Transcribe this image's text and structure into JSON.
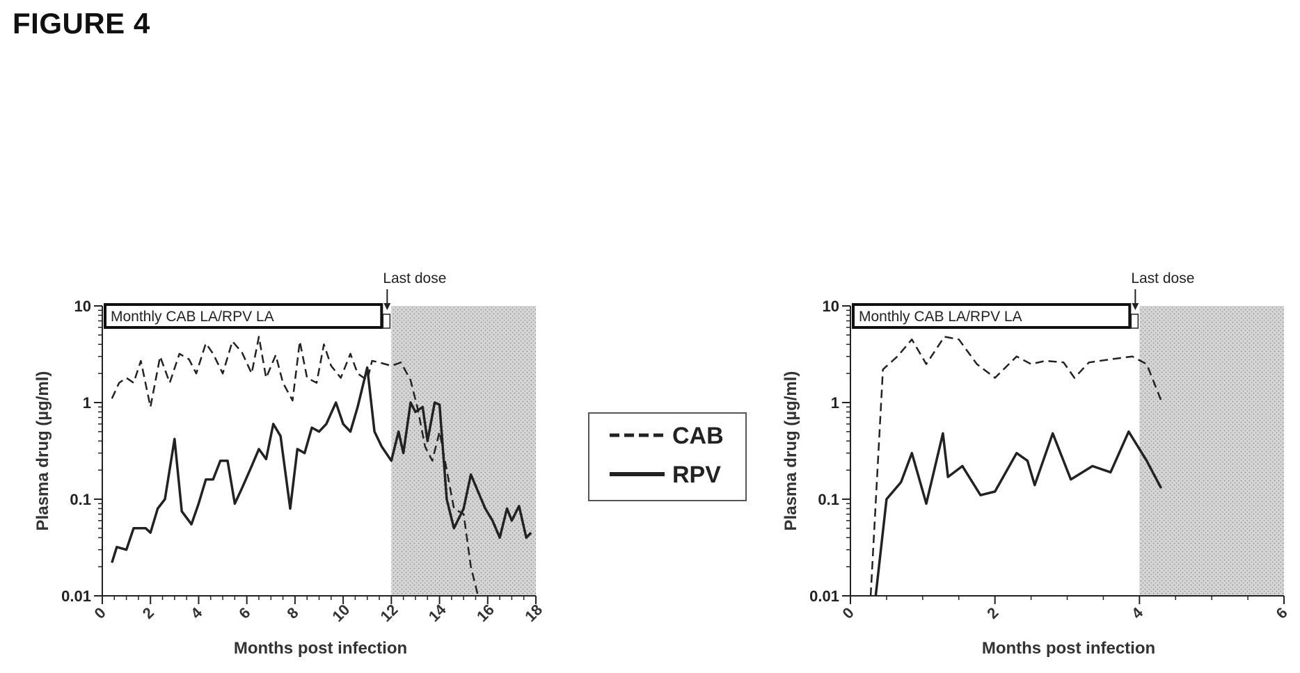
{
  "figure_title": "FIGURE 4",
  "colors": {
    "line": "#222222",
    "shade": "#c8c8c8",
    "frame": "#111111"
  },
  "legend": {
    "items": [
      {
        "label": "CAB",
        "style": "dashed"
      },
      {
        "label": "RPV",
        "style": "solid"
      }
    ]
  },
  "chart_data": [
    {
      "type": "line",
      "xlabel": "Months post infection",
      "ylabel": "Plasma drug (µg/ml)",
      "xlim": [
        0,
        18
      ],
      "ylim": [
        0.01,
        10
      ],
      "yscale": "log",
      "xticks": [
        0,
        2,
        4,
        6,
        8,
        10,
        12,
        14,
        16,
        18
      ],
      "xtick_labels": [
        "0",
        "2",
        "4",
        "6",
        "8",
        "10",
        "12",
        "14",
        "16",
        "18"
      ],
      "yticks": [
        0.01,
        0.1,
        1,
        10
      ],
      "ytick_labels": [
        "0.01",
        "0.1",
        "1",
        "10"
      ],
      "annotation": "Last dose",
      "last_dose_x": 12,
      "dosing_box_label": "Monthly CAB LA/RPV LA",
      "shaded_region": [
        12,
        18
      ],
      "series": [
        {
          "name": "CAB",
          "style": "dashed",
          "x": [
            0.4,
            0.7,
            1.0,
            1.3,
            1.6,
            2.0,
            2.4,
            2.8,
            3.2,
            3.6,
            3.9,
            4.3,
            4.6,
            5.0,
            5.4,
            5.8,
            6.2,
            6.5,
            6.8,
            7.2,
            7.5,
            7.9,
            8.2,
            8.5,
            8.9,
            9.2,
            9.5,
            9.9,
            10.3,
            10.6,
            11.0,
            11.2,
            11.5,
            12.0,
            12.4,
            12.8,
            13.1,
            13.4,
            13.7,
            14.0,
            14.3,
            14.6,
            15.0,
            15.3,
            15.6
          ],
          "y": [
            1.1,
            1.6,
            1.8,
            1.6,
            2.7,
            0.9,
            3.0,
            1.6,
            3.2,
            2.8,
            2.0,
            4.1,
            3.2,
            2.0,
            4.3,
            3.3,
            2.0,
            4.8,
            1.8,
            3.1,
            1.6,
            1.05,
            4.3,
            1.8,
            1.6,
            4.0,
            2.4,
            1.8,
            3.2,
            2.0,
            1.7,
            2.7,
            2.6,
            2.4,
            2.6,
            1.7,
            0.85,
            0.35,
            0.25,
            0.5,
            0.2,
            0.08,
            0.07,
            0.02,
            0.01
          ]
        },
        {
          "name": "RPV",
          "style": "solid",
          "x": [
            0.4,
            0.6,
            1.0,
            1.3,
            1.6,
            1.8,
            2.0,
            2.3,
            2.6,
            3.0,
            3.3,
            3.7,
            4.0,
            4.3,
            4.6,
            4.9,
            5.2,
            5.5,
            5.8,
            6.2,
            6.5,
            6.8,
            7.1,
            7.4,
            7.8,
            8.1,
            8.4,
            8.7,
            9.0,
            9.3,
            9.7,
            10.0,
            10.3,
            10.6,
            11.0,
            11.3,
            11.6,
            12.0,
            12.3,
            12.5,
            12.8,
            13.0,
            13.3,
            13.5,
            13.8,
            14.0,
            14.3,
            14.6,
            15.0,
            15.3,
            15.6,
            15.9,
            16.2,
            16.5,
            16.8,
            17.0,
            17.3,
            17.6,
            17.8
          ],
          "y": [
            0.022,
            0.032,
            0.03,
            0.05,
            0.05,
            0.05,
            0.045,
            0.08,
            0.1,
            0.42,
            0.075,
            0.055,
            0.09,
            0.16,
            0.16,
            0.25,
            0.25,
            0.09,
            0.13,
            0.22,
            0.33,
            0.26,
            0.6,
            0.45,
            0.08,
            0.33,
            0.3,
            0.55,
            0.5,
            0.6,
            1.0,
            0.6,
            0.5,
            0.9,
            2.3,
            0.5,
            0.35,
            0.25,
            0.5,
            0.3,
            1.0,
            0.8,
            0.9,
            0.4,
            1.0,
            0.95,
            0.1,
            0.05,
            0.08,
            0.18,
            0.12,
            0.08,
            0.06,
            0.04,
            0.08,
            0.06,
            0.085,
            0.04,
            0.045
          ]
        }
      ]
    },
    {
      "type": "line",
      "xlabel": "Months post infection",
      "ylabel": "Plasma drug (µg/ml)",
      "xlim": [
        0,
        6
      ],
      "ylim": [
        0.01,
        10
      ],
      "yscale": "log",
      "xticks": [
        0,
        2,
        4,
        6
      ],
      "xtick_labels": [
        "0",
        "2",
        "4",
        "6"
      ],
      "yticks": [
        0.01,
        0.1,
        1,
        10
      ],
      "ytick_labels": [
        "0.01",
        "0.1",
        "1",
        "10"
      ],
      "annotation": "Last dose",
      "last_dose_x": 4,
      "dosing_box_label": "Monthly CAB LA/RPV LA",
      "shaded_region": [
        4,
        6
      ],
      "series": [
        {
          "name": "CAB",
          "style": "dashed",
          "x": [
            0.28,
            0.45,
            0.65,
            0.85,
            1.05,
            1.3,
            1.5,
            1.75,
            2.0,
            2.3,
            2.5,
            2.7,
            2.95,
            3.1,
            3.3,
            3.6,
            3.9,
            4.1,
            4.3
          ],
          "y": [
            0.01,
            2.2,
            3.0,
            4.5,
            2.5,
            4.8,
            4.5,
            2.5,
            1.8,
            3.0,
            2.5,
            2.7,
            2.6,
            1.8,
            2.6,
            2.8,
            3.0,
            2.5,
            1.05
          ]
        },
        {
          "name": "RPV",
          "style": "solid",
          "x": [
            0.35,
            0.5,
            0.7,
            0.85,
            1.05,
            1.28,
            1.35,
            1.55,
            1.8,
            2.0,
            2.3,
            2.45,
            2.55,
            2.8,
            3.05,
            3.35,
            3.6,
            3.85,
            4.1,
            4.3
          ],
          "y": [
            0.01,
            0.1,
            0.15,
            0.3,
            0.09,
            0.48,
            0.17,
            0.22,
            0.11,
            0.12,
            0.3,
            0.25,
            0.14,
            0.48,
            0.16,
            0.22,
            0.19,
            0.5,
            0.25,
            0.13
          ]
        }
      ]
    }
  ]
}
